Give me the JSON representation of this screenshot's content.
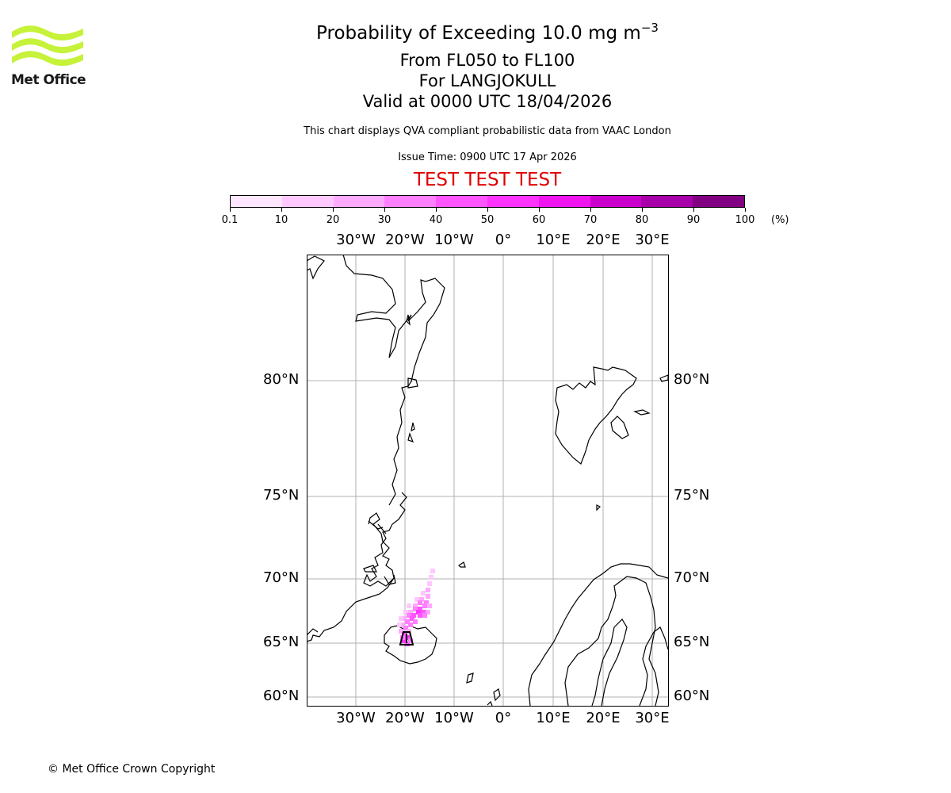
{
  "header": {
    "title": "Probability of Exceeding 10.0 mg m",
    "title_exponent": "−3",
    "level_range": "From FL050 to FL100",
    "volcano": "For LANGJOKULL",
    "validity": "Valid at 0000 UTC 18/04/2026",
    "note": "This chart displays QVA compliant probabilistic data from VAAC London",
    "issue_time": "Issue Time: 0900 UTC 17 Apr 2026",
    "test_banner": "TEST TEST TEST"
  },
  "logo": {
    "text": "Met Office",
    "brand_color": "#c6f23a"
  },
  "colorbar": {
    "unit": "(%)",
    "ticks": [
      "0.1",
      "10",
      "20",
      "30",
      "40",
      "50",
      "60",
      "70",
      "80",
      "90",
      "100"
    ],
    "colors": [
      "#ffe6ff",
      "#ffc8ff",
      "#ffaaff",
      "#ff80ff",
      "#ff55ff",
      "#ff33ff",
      "#f014f0",
      "#cc00cc",
      "#a800a8",
      "#820082",
      "#5c005c"
    ]
  },
  "map": {
    "lon_labels": [
      "30°W",
      "20°W",
      "10°W",
      "0°",
      "10°E",
      "20°E",
      "30°E"
    ],
    "lat_labels": [
      "80°N",
      "75°N",
      "70°N",
      "65°N",
      "60°N"
    ],
    "plume_color": "#ff33ff",
    "source_marker": "A"
  },
  "footer": {
    "copyright": "© Met Office Crown Copyright"
  }
}
